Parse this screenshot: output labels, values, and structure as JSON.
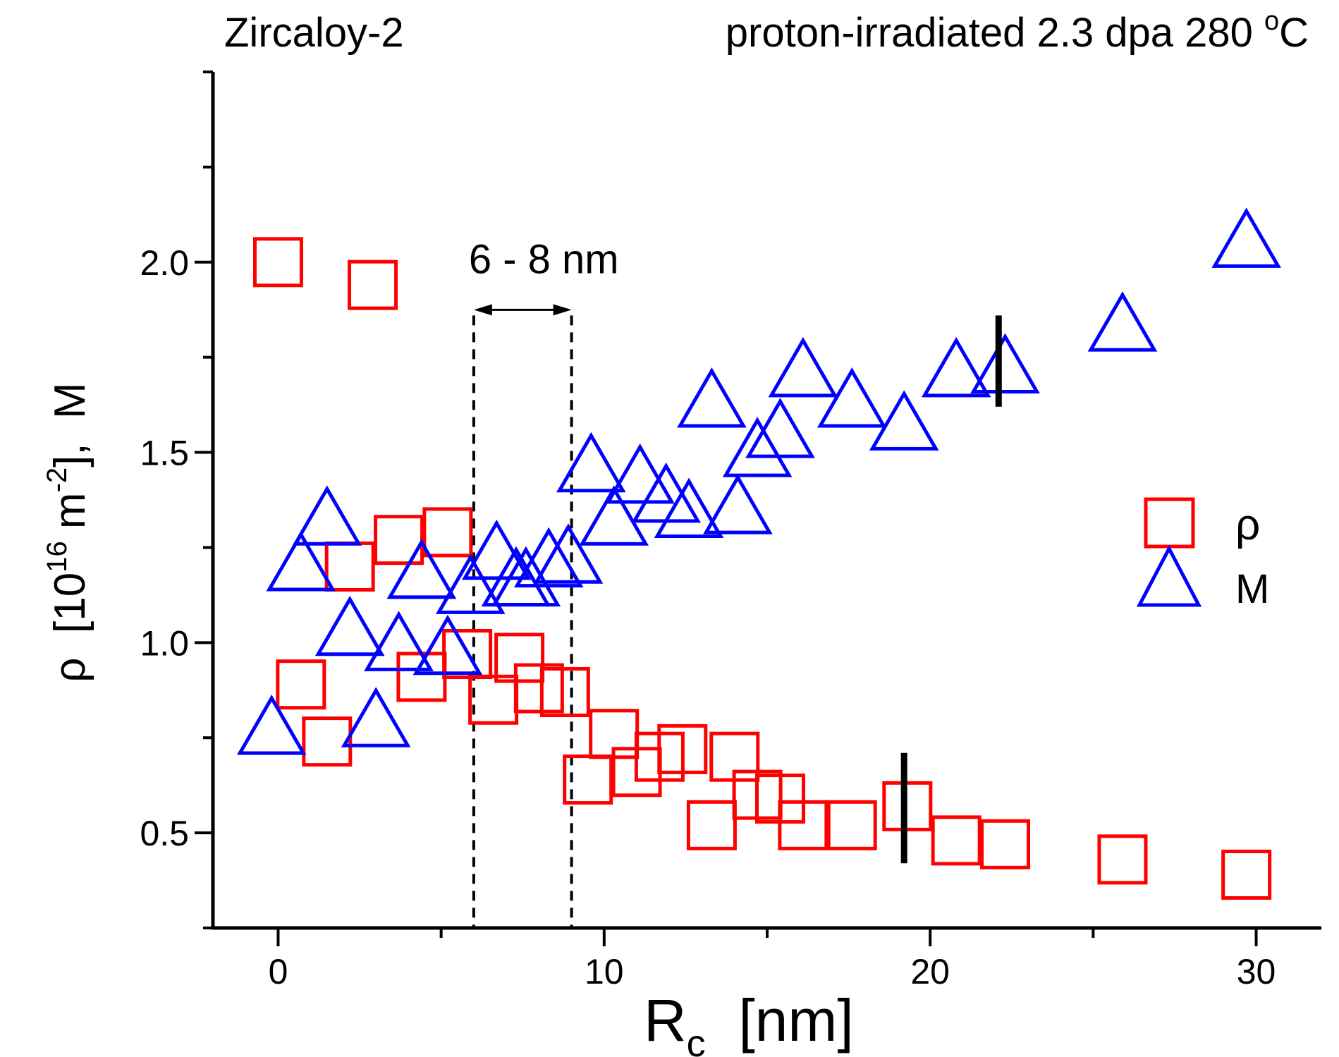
{
  "chart_data": {
    "type": "scatter",
    "title_left": "Zircaloy-2",
    "title_right": "proton-irradiated  2.3 dpa 280 °C",
    "title_right_main": "proton-irradiated  2.3 dpa 280 ",
    "title_right_sup": "o",
    "title_right_unit": "C",
    "xlabel": "R",
    "xlabel_sub": "c",
    "xlabel_unit": "  [nm]",
    "ylabel": "ρ [10¹⁶ m⁻²], M",
    "ylabel_parts": {
      "a": "ρ  [10",
      "sup1": "16",
      "b": " m",
      "sup2": "-2",
      "c": "],  M"
    },
    "xlim": [
      -2,
      32
    ],
    "ylim": [
      0.25,
      2.5
    ],
    "xticks": [
      0,
      10,
      20,
      30
    ],
    "xtick_labels": [
      "0",
      "10",
      "20",
      "30"
    ],
    "yticks": [
      0.5,
      1.0,
      1.5,
      2.0
    ],
    "ytick_labels": [
      "0.5",
      "1.0",
      "1.5",
      "2.0"
    ],
    "legend_position": "right",
    "series": [
      {
        "name": "ρ",
        "marker": "square",
        "color": "#ff0000",
        "points": [
          [
            0,
            2.0
          ],
          [
            2.9,
            1.94
          ],
          [
            0.7,
            0.89
          ],
          [
            1.5,
            0.74
          ],
          [
            2.2,
            1.2
          ],
          [
            3.7,
            1.27
          ],
          [
            4.4,
            0.91
          ],
          [
            5.2,
            1.29
          ],
          [
            5.8,
            0.97
          ],
          [
            6.6,
            0.85
          ],
          [
            7.4,
            0.96
          ],
          [
            8.0,
            0.88
          ],
          [
            8.8,
            0.87
          ],
          [
            9.5,
            0.64
          ],
          [
            10.3,
            0.76
          ],
          [
            11.0,
            0.66
          ],
          [
            11.7,
            0.7
          ],
          [
            12.4,
            0.72
          ],
          [
            13.3,
            0.52
          ],
          [
            14.0,
            0.7
          ],
          [
            14.7,
            0.6
          ],
          [
            15.4,
            0.59
          ],
          [
            16.1,
            0.52
          ],
          [
            17.6,
            0.52
          ],
          [
            19.3,
            0.57
          ],
          [
            20.8,
            0.48
          ],
          [
            22.3,
            0.47
          ],
          [
            25.9,
            0.43
          ],
          [
            29.7,
            0.39
          ]
        ]
      },
      {
        "name": "M",
        "marker": "triangle",
        "color": "#0000ff",
        "points": [
          [
            -0.2,
            0.78
          ],
          [
            0.7,
            1.21
          ],
          [
            1.5,
            1.33
          ],
          [
            2.2,
            1.04
          ],
          [
            3.0,
            0.8
          ],
          [
            3.7,
            1.0
          ],
          [
            4.4,
            1.19
          ],
          [
            5.2,
            0.99
          ],
          [
            5.9,
            1.15
          ],
          [
            6.7,
            1.24
          ],
          [
            7.3,
            1.17
          ],
          [
            7.6,
            1.17
          ],
          [
            8.3,
            1.22
          ],
          [
            8.9,
            1.23
          ],
          [
            9.6,
            1.47
          ],
          [
            10.3,
            1.33
          ],
          [
            11.1,
            1.44
          ],
          [
            11.9,
            1.39
          ],
          [
            12.6,
            1.35
          ],
          [
            13.3,
            1.64
          ],
          [
            14.1,
            1.36
          ],
          [
            14.7,
            1.51
          ],
          [
            15.4,
            1.56
          ],
          [
            16.1,
            1.72
          ],
          [
            17.6,
            1.64
          ],
          [
            19.2,
            1.58
          ],
          [
            20.8,
            1.72
          ],
          [
            22.3,
            1.73
          ],
          [
            25.9,
            1.84
          ],
          [
            29.7,
            2.06
          ]
        ]
      }
    ],
    "annotations": {
      "range_label": "6 - 8  nm",
      "range_x": [
        6.0,
        9.0
      ],
      "range_line_top_y": 1.86,
      "error_bars": [
        {
          "x": 19.2,
          "y_low": 0.42,
          "y_high": 0.71
        },
        {
          "x": 22.1,
          "y_low": 1.62,
          "y_high": 1.86
        }
      ]
    },
    "colors": {
      "rho": "#ff0000",
      "M": "#0000ff",
      "axis": "#000000"
    }
  }
}
